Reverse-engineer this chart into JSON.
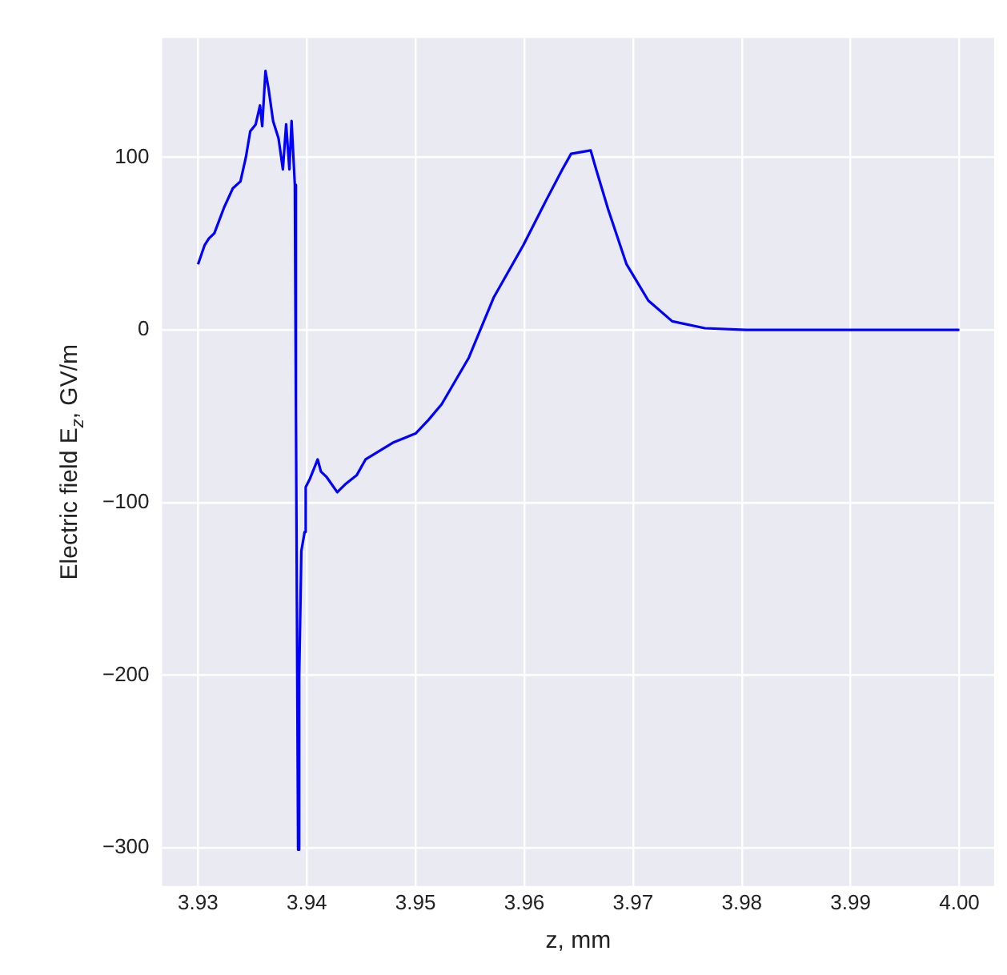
{
  "chart_data": {
    "type": "line",
    "xlabel": "z, mm",
    "ylabel": "Electric field E$_{z}$, GV/m",
    "series": [
      {
        "color": "#0000ff",
        "x": [
          3.93,
          3.9306,
          3.931,
          3.9315,
          3.9324,
          3.9332,
          3.9339,
          3.9344,
          3.9348,
          3.9353,
          3.9357,
          3.9359,
          3.9362,
          3.9365,
          3.9369,
          3.9374,
          3.9378,
          3.9381,
          3.9384,
          3.9386,
          3.9389,
          3.939,
          3.9392,
          3.9393,
          3.9395,
          3.9398,
          3.9399,
          3.9403,
          3.941,
          3.9413,
          3.9418,
          3.9428,
          3.9436,
          3.9446,
          3.9454,
          3.9467,
          3.948,
          3.95,
          3.9512,
          3.9524,
          3.9549,
          3.9572,
          3.9599,
          3.962,
          3.9635,
          3.9643,
          3.9661,
          3.9666,
          3.9677,
          3.9694,
          3.9714,
          3.9736,
          3.9766,
          3.9804,
          4.0
        ],
        "values": [
          38,
          49,
          53,
          56,
          71,
          82,
          86,
          100,
          115,
          119,
          130,
          118,
          150,
          139,
          121,
          111,
          93,
          119,
          93,
          121,
          84,
          -45,
          -301,
          -201,
          -128,
          -117,
          -91,
          -86,
          -75,
          -82,
          -85,
          -94,
          -89,
          -84,
          -75,
          -70,
          -65,
          -60,
          -52,
          -43,
          -16,
          19,
          49,
          75,
          93,
          102,
          104,
          93,
          70,
          38,
          17,
          5,
          1,
          0,
          0
        ]
      }
    ],
    "xlim": [
      3.9267,
      4.0032
    ],
    "xticks": [
      {
        "value": 3.93,
        "label": "3.93"
      },
      {
        "value": 3.94,
        "label": "3.94"
      },
      {
        "value": 3.95,
        "label": "3.95"
      },
      {
        "value": 3.96,
        "label": "3.96"
      },
      {
        "value": 3.97,
        "label": "3.97"
      },
      {
        "value": 3.98,
        "label": "3.98"
      },
      {
        "value": 3.99,
        "label": "3.99"
      },
      {
        "value": 4.0,
        "label": "4.00"
      }
    ],
    "ylim": [
      -322,
      169
    ],
    "yticks": [
      {
        "value": -300,
        "label": "−300"
      },
      {
        "value": -200,
        "label": "−200"
      },
      {
        "value": -100,
        "label": "−100"
      },
      0,
      100
    ],
    "grid": true,
    "marker": "none",
    "line_style": "solid"
  }
}
